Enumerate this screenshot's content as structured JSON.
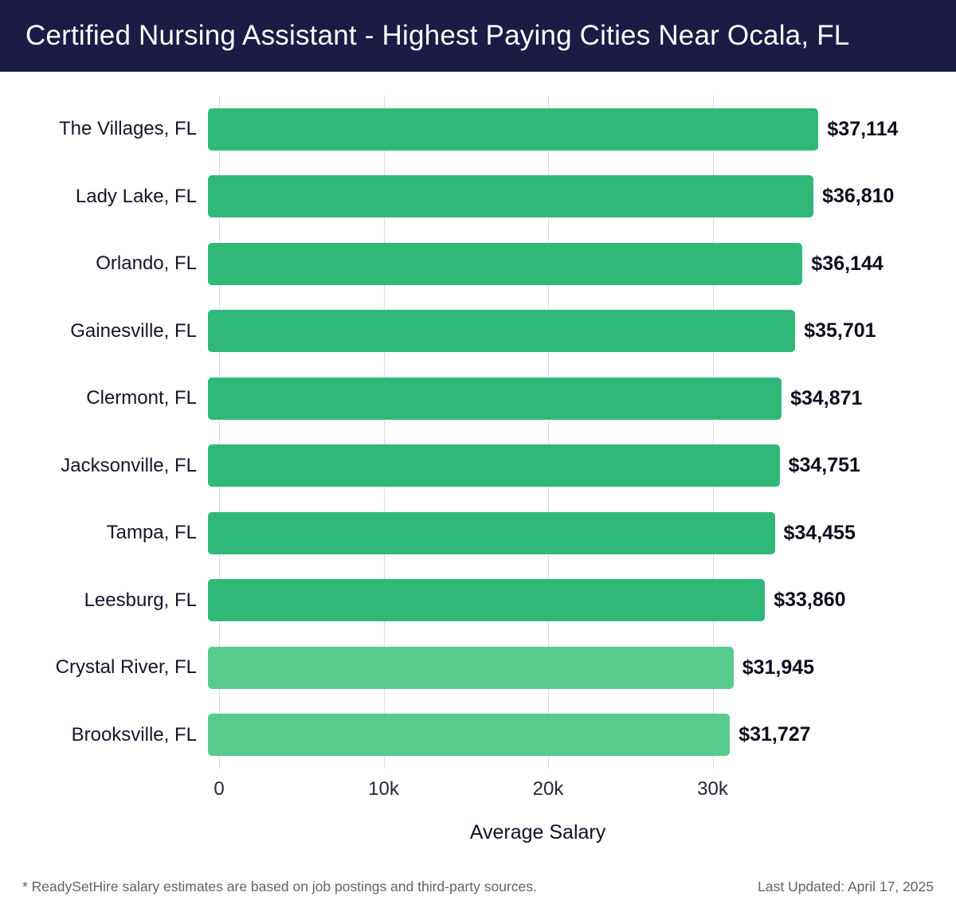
{
  "header": {
    "title": "Certified Nursing Assistant - Highest Paying Cities Near Ocala, FL",
    "bg_color": "#1b1b46",
    "fg_color": "#ffffff"
  },
  "chart_data": {
    "type": "bar",
    "orientation": "horizontal",
    "title": "Certified Nursing Assistant - Highest Paying Cities Near Ocala, FL",
    "categories": [
      "The Villages, FL",
      "Lady Lake, FL",
      "Orlando, FL",
      "Gainesville, FL",
      "Clermont, FL",
      "Jacksonville, FL",
      "Tampa, FL",
      "Leesburg, FL",
      "Crystal River, FL",
      "Brooksville, FL"
    ],
    "values": [
      37114,
      36810,
      36144,
      35701,
      34871,
      34751,
      34455,
      33860,
      31945,
      31727
    ],
    "value_labels": [
      "$37,114",
      "$36,810",
      "$36,144",
      "$35,701",
      "$34,871",
      "$34,751",
      "$34,455",
      "$33,860",
      "$31,945",
      "$31,727"
    ],
    "bar_colors": [
      "#2fb878",
      "#2fb878",
      "#2fb878",
      "#2fb878",
      "#2fb878",
      "#2fb878",
      "#2fb878",
      "#2fb878",
      "#57cb8e",
      "#57cb8e"
    ],
    "xlabel": "Average Salary",
    "ylabel": "",
    "xlim": [
      0,
      38740
    ],
    "xticks": [
      {
        "value": 0,
        "label": "0"
      },
      {
        "value": 10000,
        "label": "10k"
      },
      {
        "value": 20000,
        "label": "20k"
      },
      {
        "value": 30000,
        "label": "30k"
      }
    ],
    "grid": true,
    "legend": "none"
  },
  "footer": {
    "note": "* ReadySetHire salary estimates are based on job postings and third-party sources.",
    "updated": "Last Updated: April 17, 2025"
  }
}
